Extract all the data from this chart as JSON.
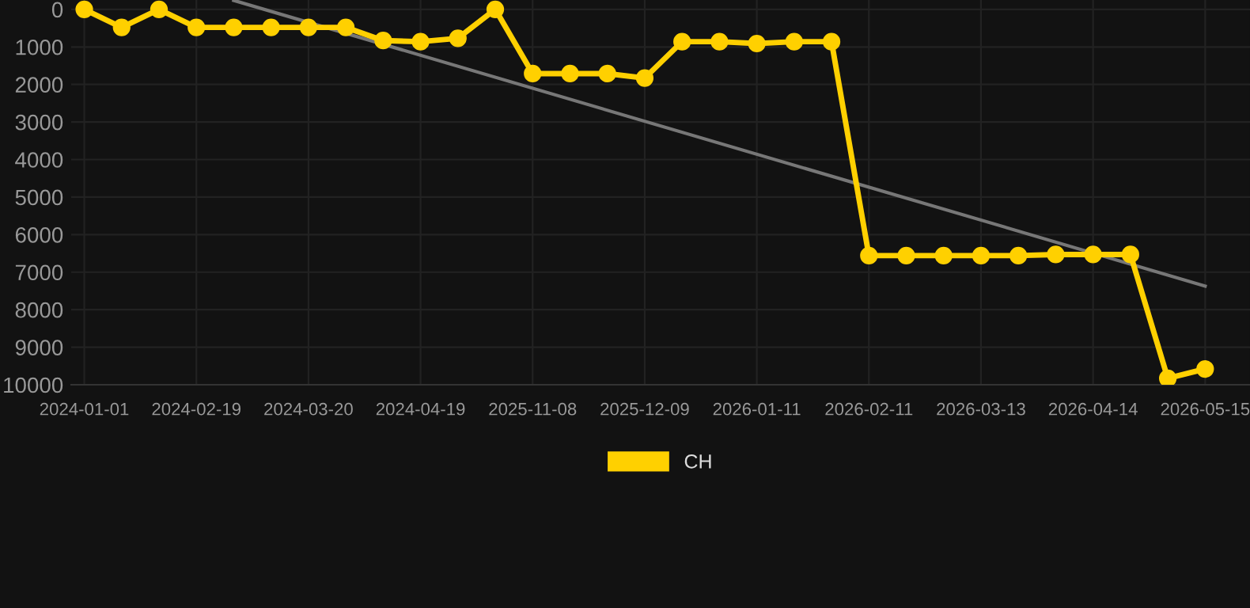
{
  "chart_data": {
    "type": "line",
    "categories": [
      "2024-01-01",
      null,
      null,
      "2024-02-19",
      null,
      null,
      "2024-03-20",
      null,
      null,
      "2024-04-19",
      null,
      null,
      "2025-11-08",
      null,
      null,
      "2025-12-09",
      null,
      null,
      "2026-01-11",
      null,
      null,
      "2026-02-11",
      null,
      null,
      "2026-03-13",
      null,
      null,
      "2026-04-14",
      null,
      null,
      "2026-05-15"
    ],
    "series": [
      {
        "name": "CH",
        "color": "#ffd000",
        "values": [
          0,
          480,
          0,
          480,
          480,
          480,
          480,
          480,
          830,
          860,
          770,
          0,
          1710,
          1710,
          1710,
          1830,
          860,
          860,
          910,
          860,
          860,
          6560,
          6560,
          6560,
          6560,
          6560,
          6530,
          6530,
          6530,
          9830,
          9580
        ]
      },
      {
        "type": "line",
        "color": "#777777",
        "marker": "none",
        "values": [
          null,
          null,
          null,
          null,
          -240,
          null,
          null,
          null,
          null,
          null,
          null,
          null,
          null,
          null,
          null,
          null,
          null,
          null,
          null,
          null,
          null,
          null,
          null,
          null,
          null,
          null,
          null,
          null,
          null,
          null,
          7370
        ]
      }
    ],
    "ylim": [
      10000,
      -250
    ],
    "yticks": [
      0,
      1000,
      2000,
      3000,
      4000,
      5000,
      6000,
      7000,
      8000,
      9000,
      10000
    ],
    "grid": true,
    "legend": "bottom",
    "marker": "circle",
    "line_style": "solid"
  }
}
